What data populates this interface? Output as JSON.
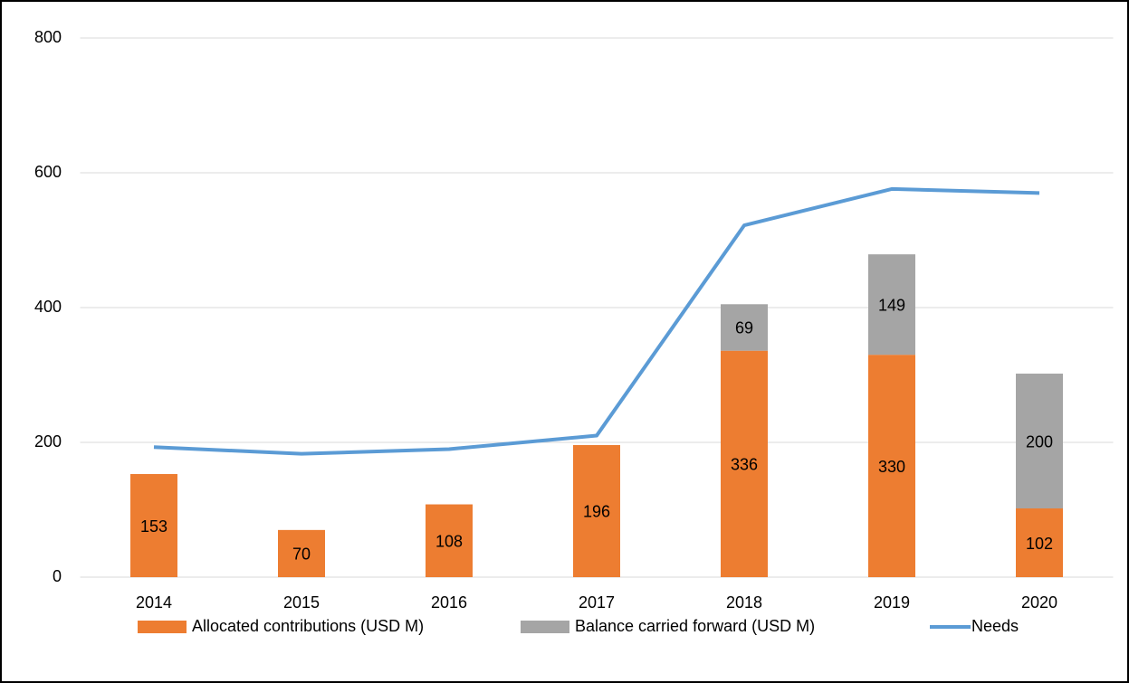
{
  "chart_data": {
    "type": "bar",
    "stacked": true,
    "categories": [
      "2014",
      "2015",
      "2016",
      "2017",
      "2018",
      "2019",
      "2020"
    ],
    "series": [
      {
        "name": "Allocated contributions (USD M)",
        "color": "#ed7d31",
        "values": [
          153,
          70,
          108,
          196,
          336,
          330,
          102
        ]
      },
      {
        "name": "Balance carried forward (USD M)",
        "color": "#a5a5a5",
        "values": [
          null,
          null,
          null,
          null,
          69,
          149,
          200
        ]
      },
      {
        "name": "Needs",
        "type": "line",
        "color": "#5b9bd5",
        "values": [
          193,
          183,
          190,
          210,
          522,
          576,
          570
        ]
      }
    ],
    "ylim": [
      0,
      800
    ],
    "yticks": [
      0,
      200,
      400,
      600,
      800
    ],
    "grid": true,
    "legend": "bottom"
  }
}
